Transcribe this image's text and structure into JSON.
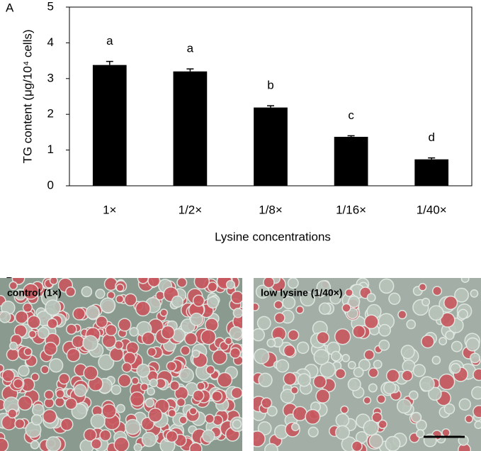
{
  "panel_labels": [
    "A",
    "B"
  ],
  "chart_data": {
    "type": "bar",
    "ylabel": "TG content (μg/10⁴ cells)",
    "xlabel": "Lysine concentrations",
    "categories": [
      "1×",
      "1/2×",
      "1/8×",
      "1/16×",
      "1/40×"
    ],
    "values": [
      3.38,
      3.2,
      2.19,
      1.37,
      0.74
    ],
    "errors": [
      0.1,
      0.07,
      0.05,
      0.03,
      0.04
    ],
    "annotations": [
      "a",
      "a",
      "b",
      "c",
      "d"
    ],
    "color": "#000000",
    "ylim": [
      0,
      5
    ],
    "yticks": [
      0,
      1,
      2,
      3,
      4,
      5
    ],
    "grid": false
  },
  "images": [
    {
      "label": "control (1×)"
    },
    {
      "label": "low lysine (1/40×)"
    }
  ]
}
